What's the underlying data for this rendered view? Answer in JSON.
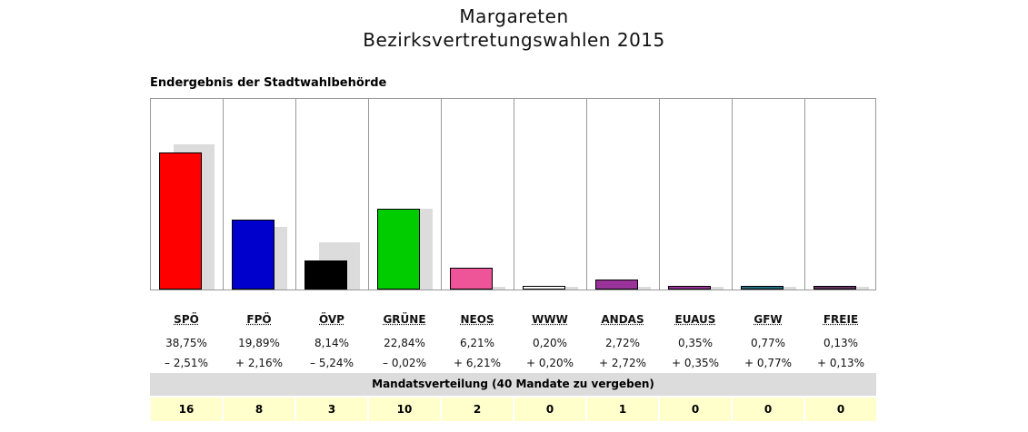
{
  "title": "Margareten",
  "subtitle": "Bezirksvertretungswahlen 2015",
  "section_label": "Endergebnis der Stadtwahlbehörde",
  "mandate_header": "Mandatsverteilung (40 Mandate zu vergeben)",
  "chart_data": {
    "type": "bar",
    "categories": [
      "SPÖ",
      "FPÖ",
      "ÖVP",
      "GRÜNE",
      "NEOS",
      "WWW",
      "ANDAS",
      "EUAUS",
      "GFW",
      "FREIE"
    ],
    "values": [
      38.75,
      19.89,
      8.14,
      22.84,
      6.21,
      0.2,
      2.72,
      0.35,
      0.77,
      0.13
    ],
    "previous": [
      41.26,
      17.73,
      13.38,
      22.86,
      0,
      0,
      0,
      0,
      0,
      0
    ],
    "value_labels": [
      "38,75%",
      "19,89%",
      "8,14%",
      "22,84%",
      "6,21%",
      "0,20%",
      "2,72%",
      "0,35%",
      "0,77%",
      "0,13%"
    ],
    "change_labels": [
      "– 2,51%",
      "+ 2,16%",
      "– 5,24%",
      "– 0,02%",
      "+ 6,21%",
      "+ 0,20%",
      "+ 2,72%",
      "+ 0,35%",
      "+ 0,77%",
      "+ 0,13%"
    ],
    "colors": [
      "#ff0000",
      "#0000cc",
      "#000000",
      "#00cc00",
      "#ee5599",
      "#ffffff",
      "#993399",
      "#993399",
      "#226e80",
      "#663366"
    ],
    "previous_color": "#dcdcdc",
    "seats": [
      "16",
      "8",
      "3",
      "10",
      "2",
      "0",
      "1",
      "0",
      "0",
      "0"
    ],
    "ylim": [
      0,
      54
    ]
  }
}
